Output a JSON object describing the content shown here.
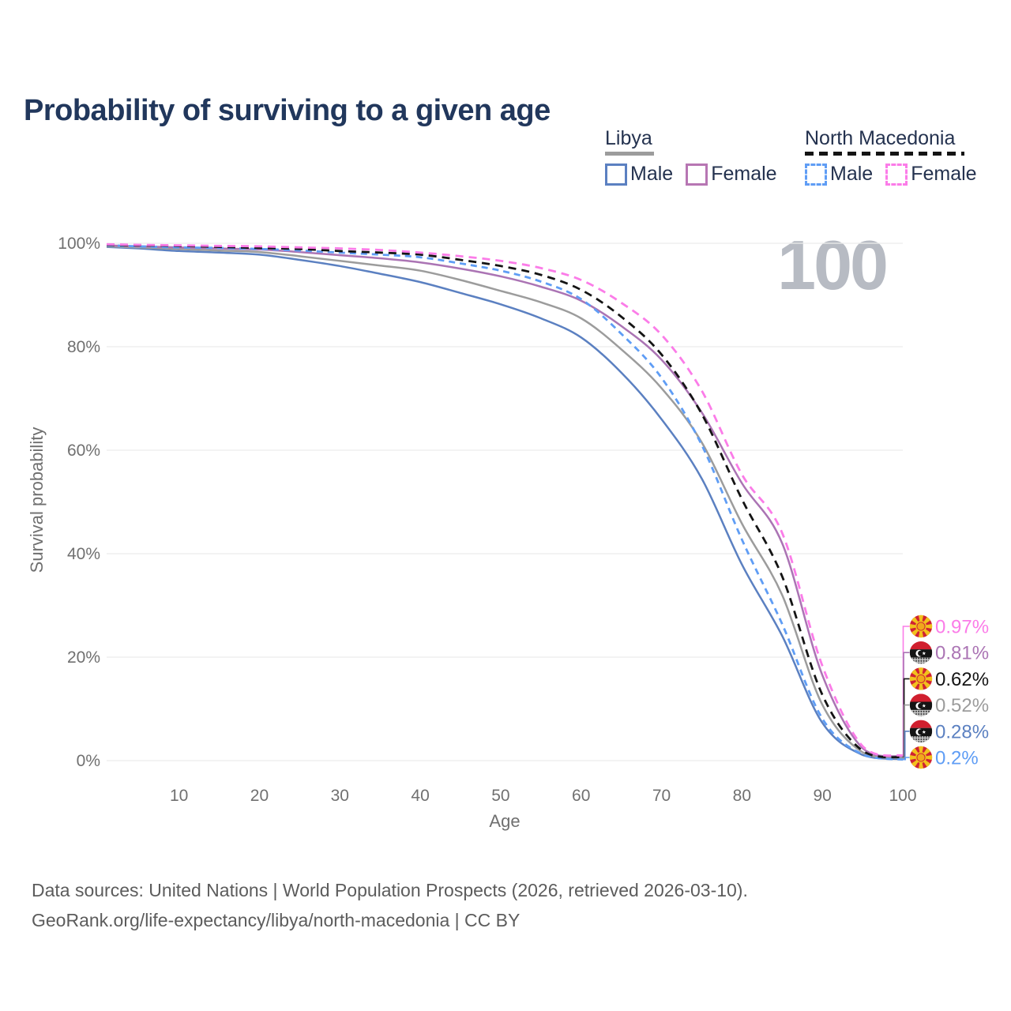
{
  "title": "Probability of surviving to a given age",
  "watermark": "100",
  "legend": {
    "groups": [
      {
        "label": "Libya",
        "line_style": "solid",
        "underline_color": "#9c9c9c",
        "items": [
          {
            "label": "Male",
            "color": "#5b80c1"
          },
          {
            "label": "Female",
            "color": "#ab74b4"
          }
        ]
      },
      {
        "label": "North Macedonia",
        "line_style": "dashed",
        "underline_color": "#141414",
        "items": [
          {
            "label": "Male",
            "color": "#5f9df5"
          },
          {
            "label": "Female",
            "color": "#fb7ce8"
          }
        ]
      }
    ]
  },
  "chart_data": {
    "type": "line",
    "title": "Probability of surviving to a given age",
    "xlabel": "Age",
    "ylabel": "Survival probability",
    "xlim": [
      1,
      100
    ],
    "ylim": [
      0,
      100
    ],
    "grid": "horizontal",
    "x_ticks": [
      10,
      20,
      30,
      40,
      50,
      60,
      70,
      80,
      90,
      100
    ],
    "y_ticks": [
      {
        "value": 0,
        "label": "0%"
      },
      {
        "value": 20,
        "label": "20%"
      },
      {
        "value": 40,
        "label": "40%"
      },
      {
        "value": 60,
        "label": "60%"
      },
      {
        "value": 80,
        "label": "80%"
      },
      {
        "value": 100,
        "label": "100%"
      }
    ],
    "x": [
      1,
      5,
      10,
      15,
      20,
      25,
      30,
      35,
      40,
      45,
      50,
      55,
      60,
      65,
      70,
      75,
      80,
      85,
      90,
      95,
      100
    ],
    "series": [
      {
        "name": "North Macedonia — Female",
        "flag": "north-macedonia",
        "color": "#fb7ce8",
        "dash": "dashed",
        "end_label": "0.97%",
        "values": [
          99.8,
          99.7,
          99.6,
          99.5,
          99.4,
          99.2,
          99.0,
          98.7,
          98.2,
          97.5,
          96.6,
          95.2,
          92.9,
          88.5,
          82.3,
          71.5,
          55.3,
          44.0,
          18.3,
          2.8,
          0.97
        ]
      },
      {
        "name": "Libya — Female",
        "flag": "libya",
        "color": "#ab74b4",
        "dash": "solid",
        "end_label": "0.81%",
        "values": [
          99.6,
          99.4,
          99.2,
          99.0,
          98.8,
          98.3,
          97.7,
          97.1,
          96.3,
          95.1,
          93.6,
          91.6,
          88.9,
          84.0,
          77.5,
          67.3,
          53.6,
          42.0,
          16.5,
          2.4,
          0.81
        ]
      },
      {
        "name": "North Macedonia",
        "flag": "north-macedonia",
        "color": "#141414",
        "dash": "dashed",
        "end_label": "0.62%",
        "values": [
          99.7,
          99.6,
          99.5,
          99.3,
          99.1,
          98.9,
          98.5,
          98.2,
          97.8,
          96.8,
          95.6,
          93.9,
          91.0,
          85.8,
          78.5,
          67.0,
          50.5,
          35.6,
          12.7,
          1.9,
          0.62
        ]
      },
      {
        "name": "Libya",
        "flag": "libya",
        "color": "#9c9c9c",
        "dash": "solid",
        "end_label": "0.52%",
        "values": [
          99.4,
          99.2,
          98.9,
          98.6,
          98.3,
          97.5,
          96.6,
          95.7,
          94.7,
          92.9,
          90.8,
          88.6,
          85.5,
          79.5,
          72.0,
          61.5,
          45.8,
          32.0,
          10.8,
          1.6,
          0.52
        ]
      },
      {
        "name": "Libya — Male",
        "flag": "libya",
        "color": "#5b80c1",
        "dash": "solid",
        "end_label": "0.28%",
        "values": [
          99.3,
          99.0,
          98.5,
          98.2,
          97.8,
          96.8,
          95.6,
          94.1,
          92.5,
          90.4,
          88.2,
          85.5,
          81.8,
          75.0,
          66.0,
          54.5,
          37.9,
          24.1,
          7.3,
          1.1,
          0.28
        ]
      },
      {
        "name": "North Macedonia — Male",
        "flag": "north-macedonia",
        "color": "#5f9df5",
        "dash": "dashed",
        "end_label": "0.2%",
        "values": [
          99.6,
          99.4,
          99.2,
          99.1,
          98.9,
          98.6,
          98.2,
          97.8,
          97.3,
          96.1,
          94.7,
          92.6,
          89.2,
          82.5,
          74.0,
          61.0,
          42.7,
          26.4,
          8.1,
          1.2,
          0.2
        ]
      }
    ]
  },
  "footer": {
    "line1": "Data sources: United Nations | World Population Prospects (2026, retrieved 2026-03-10).",
    "line2": "GeoRank.org/life-expectancy/libya/north-macedonia | CC BY"
  },
  "colors": {
    "title_text": "#21375c",
    "legend_text": "#24324f",
    "gridline": "#ececec",
    "tick_text": "#707070",
    "watermark": "#b7bbc3",
    "footer_text": "#5c5c5c"
  }
}
